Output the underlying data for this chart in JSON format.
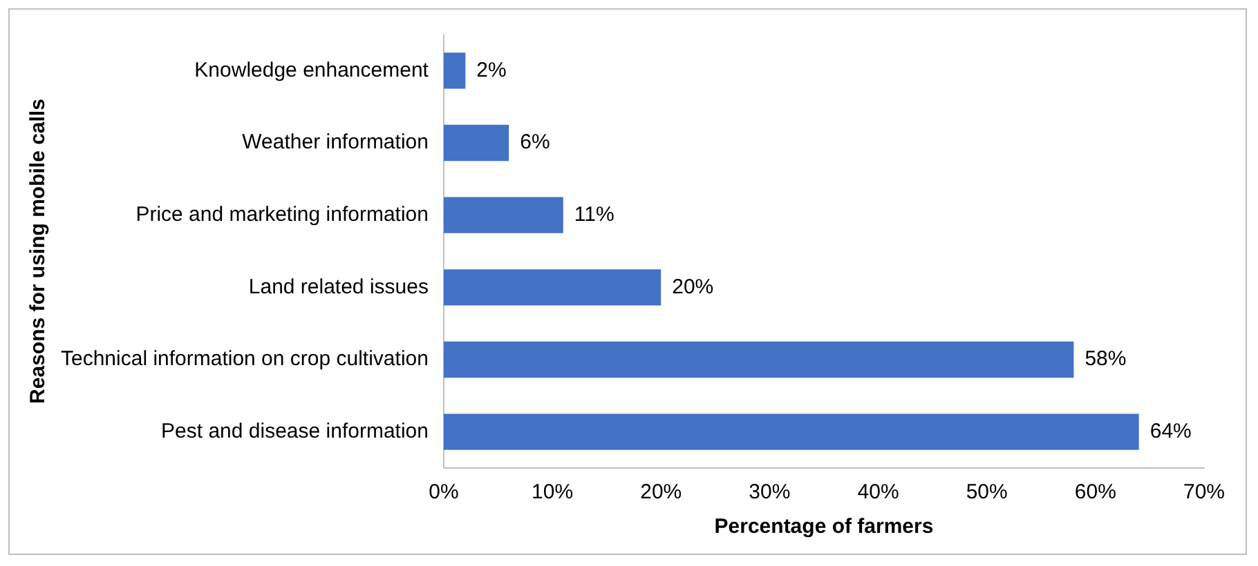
{
  "chart_data": {
    "type": "bar",
    "orientation": "horizontal",
    "xlabel": "Percentage of farmers",
    "ylabel": "Reasons for using mobile calls",
    "categories": [
      "Knowledge enhancement",
      "Weather information",
      "Price and marketing information",
      "Land related issues",
      "Technical information on crop cultivation",
      "Pest and disease information"
    ],
    "values": [
      2,
      6,
      11,
      20,
      58,
      64
    ],
    "value_labels": [
      "2%",
      "6%",
      "11%",
      "20%",
      "58%",
      "64%"
    ],
    "color": "#4472c4",
    "xlim": [
      0,
      70
    ],
    "xticks": [
      {
        "value": 0,
        "label": "0%"
      },
      {
        "value": 10,
        "label": "10%"
      },
      {
        "value": 20,
        "label": "20%"
      },
      {
        "value": 30,
        "label": "30%"
      },
      {
        "value": 40,
        "label": "40%"
      },
      {
        "value": 50,
        "label": "50%"
      },
      {
        "value": 60,
        "label": "60%"
      },
      {
        "value": 70,
        "label": "70%"
      }
    ],
    "grid": false,
    "legend": false
  }
}
